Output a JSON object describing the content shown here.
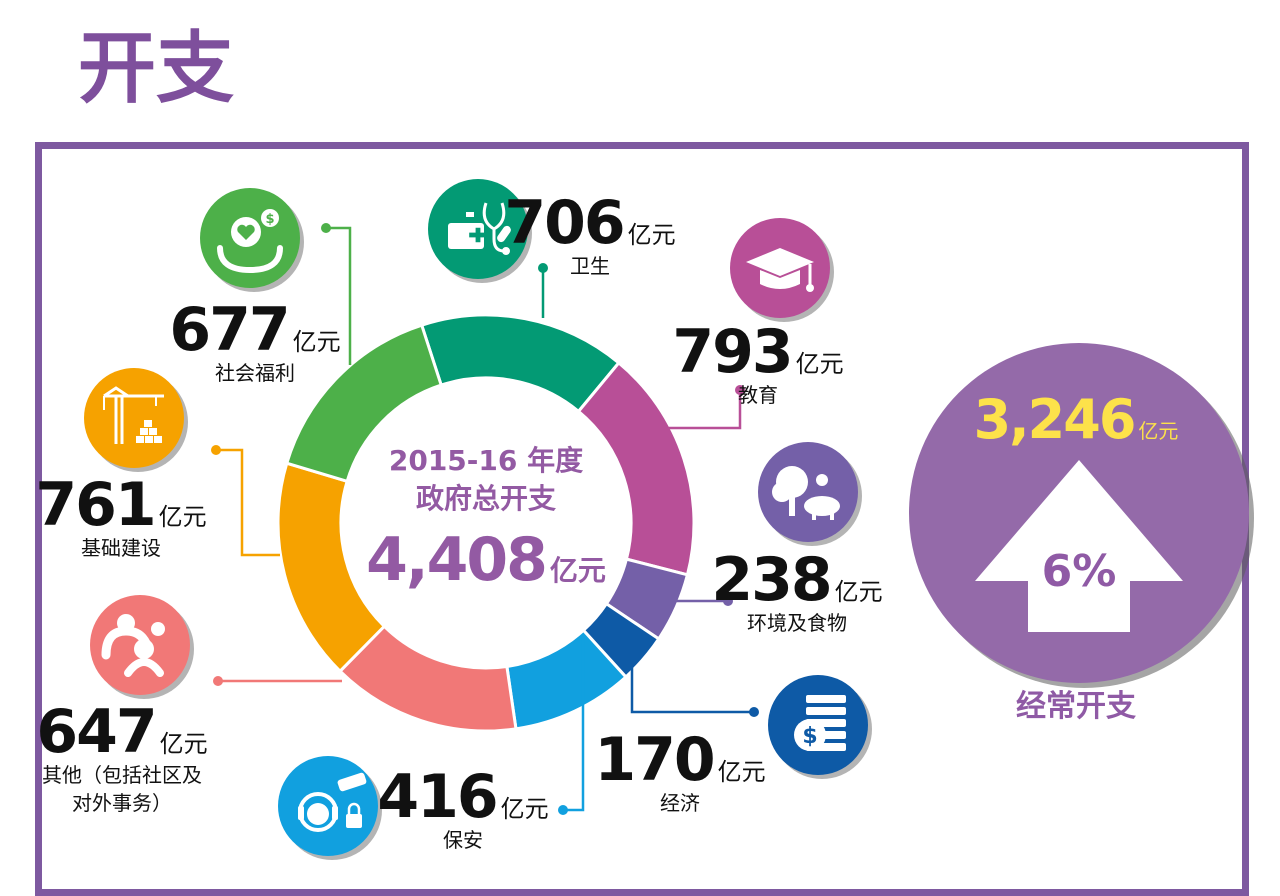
{
  "page": {
    "title": "开支"
  },
  "unit": "亿元",
  "chart_data": {
    "type": "pie",
    "donut": true,
    "center": {
      "line1": "2015-16 年度",
      "line2": "政府总开支",
      "value": "4,408",
      "unit": "亿元"
    },
    "slices": [
      {
        "label": "卫生",
        "value": 706,
        "color": "#039a74",
        "icon": "medical-kit-stethoscope-icon"
      },
      {
        "label": "教育",
        "value": 793,
        "color": "#b84f97",
        "icon": "graduation-cap-icon"
      },
      {
        "label": "环境及食物",
        "value": 238,
        "color": "#7460a8",
        "icon": "tree-and-livestock-icon"
      },
      {
        "label": "经济",
        "value": 170,
        "color": "#0e5aa6",
        "icon": "dollar-coin-stack-icon"
      },
      {
        "label": "保安",
        "value": 416,
        "color": "#11a0df",
        "icon": "headset-cctv-lock-icon"
      },
      {
        "label": "其他（包括社区及对外事务）",
        "label_lines": [
          "其他（包括社区及",
          "对外事务）"
        ],
        "value": 647,
        "color": "#f17877",
        "icon": "family-community-icon"
      },
      {
        "label": "基础建设",
        "value": 761,
        "color": "#f6a200",
        "icon": "construction-crane-icon"
      },
      {
        "label": "社会福利",
        "value": 677,
        "color": "#4db049",
        "icon": "hands-heart-dollar-icon"
      }
    ],
    "recurrent": {
      "value": "3,246",
      "unit": "亿元",
      "change": "6%",
      "direction": "up",
      "label": "经常开支",
      "color": "#946aa9",
      "value_color": "#fde24a"
    }
  }
}
